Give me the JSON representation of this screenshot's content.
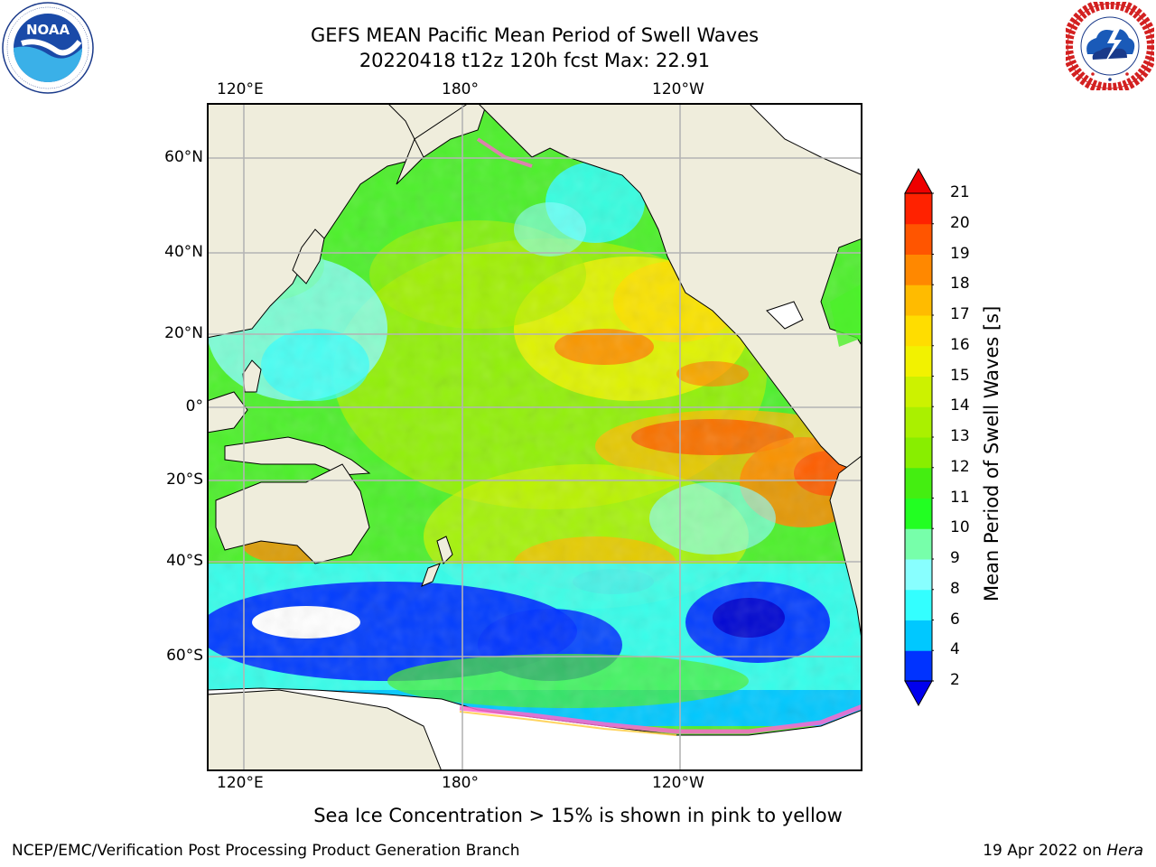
{
  "title": {
    "line1": "GEFS MEAN Pacific Mean Period of Swell Waves",
    "line2": "20220418 t12z 120h fcst   Max: 22.91"
  },
  "logos": {
    "noaa": {
      "text": "NOAA",
      "ring_text": "NATIONAL OCEANIC AND ATMOSPHERIC ADMINISTRATION · U.S. DEPARTMENT OF COMMERCE"
    },
    "nws": {
      "ring_text": "NATIONAL WEATHER SERVICE"
    }
  },
  "map": {
    "lon_labels_top": [
      "120°E",
      "180°",
      "120°W"
    ],
    "lon_labels_bottom": [
      "120°E",
      "180°",
      "120°W"
    ],
    "lat_labels": [
      "60°N",
      "40°N",
      "20°N",
      "0°",
      "20°S",
      "40°S",
      "60°S"
    ],
    "colors": {
      "land": "#efeddc",
      "ice": "#ffffff",
      "frame": "#000000",
      "grid": "#b4b4b4"
    }
  },
  "colorbar": {
    "title": "Mean Period of Swell Waves [s]",
    "ticks": [
      "2",
      "4",
      "6",
      "8",
      "9",
      "10",
      "11",
      "12",
      "13",
      "14",
      "15",
      "16",
      "17",
      "18",
      "19",
      "20",
      "21"
    ],
    "colors": [
      "#0033ff",
      "#00c8ff",
      "#33ffff",
      "#88ffff",
      "#77ffaa",
      "#22ff22",
      "#44ee11",
      "#88ee00",
      "#aaf000",
      "#ccf200",
      "#f2f200",
      "#ffdd00",
      "#ffbb00",
      "#ff8800",
      "#ff5500",
      "#ff2200"
    ],
    "under_color": "#0000ee",
    "over_color": "#ee0000"
  },
  "caption": "Sea Ice Concentration > 15% is shown in pink to yellow",
  "footer": {
    "left": "NCEP/EMC/Verification Post Processing Product Generation Branch",
    "date": "19 Apr 2022 on ",
    "machine": "Hera"
  }
}
